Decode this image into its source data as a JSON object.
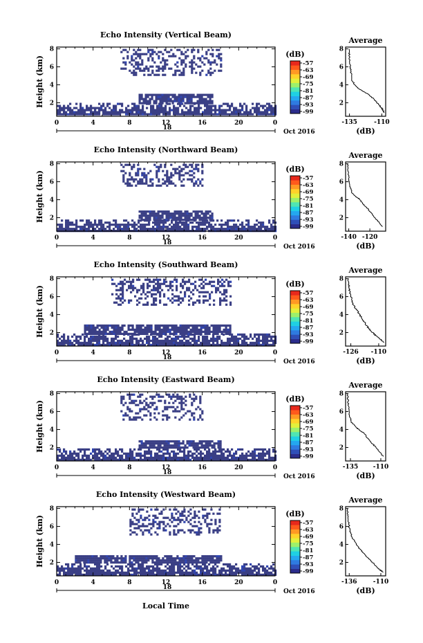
{
  "figure": {
    "date_label": "Oct 2016",
    "xlabel": "Local Time",
    "ylabel": "Height (km)",
    "day_label": "18"
  },
  "colorbar": {
    "unit": "(dB)",
    "ticks": [
      "-57",
      "-63",
      "-69",
      "-75",
      "-81",
      "-87",
      "-93",
      "-99"
    ],
    "colors": [
      "#2b2d8c",
      "#2f4fb8",
      "#2f7be0",
      "#24a8ef",
      "#1fd0e3",
      "#4fe5b3",
      "#9df06b",
      "#e2f03c",
      "#ffd22a",
      "#ff9924",
      "#ff5a1c",
      "#e8291c"
    ]
  },
  "chart_data": [
    {
      "type": "heatmap",
      "title": "Echo Intensity (Vertical Beam)",
      "xlabel": "Local Time",
      "ylabel": "Height (km)",
      "x_ticks": [
        "0",
        "4",
        "8",
        "12",
        "16",
        "20",
        "0"
      ],
      "xlim": [
        0,
        24
      ],
      "y_ticks": [
        "2",
        "4",
        "6",
        "8"
      ],
      "ylim": [
        0.5,
        8.2
      ],
      "regions": [
        {
          "level": "-99 to -93 dB",
          "x": [
            0,
            24
          ],
          "y": [
            0.7,
            2.0
          ]
        },
        {
          "level": "-99 to -93 dB",
          "x": [
            9,
            17
          ],
          "y": [
            2.0,
            3.0
          ]
        },
        {
          "level": "-99 to -93 dB",
          "x": [
            7,
            18
          ],
          "y": [
            5.0,
            8.0
          ]
        }
      ],
      "profile": {
        "title": "Average",
        "xlabel": "(dB)",
        "x_ticks": [
          "-135",
          "-110"
        ],
        "y_ticks": [
          "2",
          "4",
          "6",
          "8"
        ],
        "xlim": [
          -138,
          -107
        ],
        "ylim": [
          0.5,
          8.2
        ],
        "x": [
          -135.5,
          -135,
          -134.5,
          -134,
          -133,
          -130,
          -125,
          -120,
          -116,
          -113,
          -110,
          -108
        ],
        "y": [
          8.0,
          7.2,
          6.3,
          5.5,
          4.5,
          3.8,
          3.3,
          2.9,
          2.4,
          1.9,
          1.4,
          0.9
        ]
      }
    },
    {
      "type": "heatmap",
      "title": "Echo Intensity (Northward Beam)",
      "xlabel": "Local Time",
      "ylabel": "Height (km)",
      "x_ticks": [
        "0",
        "4",
        "8",
        "12",
        "16",
        "20",
        "0"
      ],
      "xlim": [
        0,
        24
      ],
      "y_ticks": [
        "2",
        "4",
        "6",
        "8"
      ],
      "ylim": [
        0.5,
        8.2
      ],
      "regions": [
        {
          "level": "-99 to -93 dB",
          "x": [
            0,
            24
          ],
          "y": [
            0.6,
            1.8
          ]
        },
        {
          "level": "-99 to -93 dB",
          "x": [
            9,
            17
          ],
          "y": [
            1.8,
            2.8
          ]
        },
        {
          "level": "-99 to -93 dB",
          "x": [
            7,
            16
          ],
          "y": [
            5.5,
            8.0
          ]
        }
      ],
      "profile": {
        "title": "Average",
        "xlabel": "(dB)",
        "x_ticks": [
          "-140",
          "-120"
        ],
        "y_ticks": [
          "2",
          "4",
          "6",
          "8"
        ],
        "xlim": [
          -143,
          -105
        ],
        "ylim": [
          0.5,
          8.2
        ],
        "x": [
          -141,
          -140.5,
          -140,
          -139,
          -137,
          -133,
          -130,
          -127,
          -122,
          -118,
          -113,
          -108
        ],
        "y": [
          8.0,
          7.2,
          6.4,
          5.6,
          4.8,
          4.3,
          4.1,
          3.6,
          3.0,
          2.4,
          1.7,
          1.0
        ]
      }
    },
    {
      "type": "heatmap",
      "title": "Echo Intensity (Southward Beam)",
      "xlabel": "Local Time",
      "ylabel": "Height (km)",
      "x_ticks": [
        "0",
        "4",
        "8",
        "12",
        "16",
        "20",
        "0"
      ],
      "xlim": [
        0,
        24
      ],
      "y_ticks": [
        "2",
        "4",
        "6",
        "8"
      ],
      "ylim": [
        0.5,
        8.2
      ],
      "regions": [
        {
          "level": "-99 to -93 dB",
          "x": [
            0,
            24
          ],
          "y": [
            0.6,
            1.9
          ]
        },
        {
          "level": "-99 to -93 dB",
          "x": [
            3,
            19
          ],
          "y": [
            1.9,
            2.9
          ]
        },
        {
          "level": "-99 to -93 dB",
          "x": [
            6,
            19
          ],
          "y": [
            5.0,
            8.0
          ]
        }
      ],
      "profile": {
        "title": "Average",
        "xlabel": "(dB)",
        "x_ticks": [
          "-126",
          "-110"
        ],
        "y_ticks": [
          "2",
          "4",
          "6",
          "8"
        ],
        "xlim": [
          -129,
          -106
        ],
        "ylim": [
          0.5,
          8.2
        ],
        "x": [
          -127.5,
          -127,
          -126.5,
          -125.5,
          -124,
          -122,
          -120,
          -118,
          -116,
          -113,
          -110,
          -107
        ],
        "y": [
          8.0,
          7.2,
          6.4,
          5.6,
          4.9,
          4.3,
          3.7,
          3.1,
          2.5,
          1.9,
          1.4,
          0.9
        ]
      }
    },
    {
      "type": "heatmap",
      "title": "Echo Intensity (Eastward Beam)",
      "xlabel": "Local Time",
      "ylabel": "Height (km)",
      "x_ticks": [
        "0",
        "4",
        "8",
        "12",
        "16",
        "20",
        "0"
      ],
      "xlim": [
        0,
        24
      ],
      "y_ticks": [
        "2",
        "4",
        "6",
        "8"
      ],
      "ylim": [
        0.5,
        8.2
      ],
      "regions": [
        {
          "level": "-99 to -93 dB",
          "x": [
            0,
            24
          ],
          "y": [
            0.6,
            1.9
          ]
        },
        {
          "level": "-99 to -93 dB",
          "x": [
            9,
            18
          ],
          "y": [
            1.9,
            2.8
          ]
        },
        {
          "level": "-99 to -93 dB",
          "x": [
            7,
            16
          ],
          "y": [
            5.0,
            8.0
          ]
        }
      ],
      "profile": {
        "title": "Average",
        "xlabel": "(dB)",
        "x_ticks": [
          "-135",
          "-110"
        ],
        "y_ticks": [
          "2",
          "4",
          "6",
          "8"
        ],
        "xlim": [
          -139,
          -106
        ],
        "ylim": [
          0.5,
          8.2
        ],
        "x": [
          -137.5,
          -137,
          -136.5,
          -135.5,
          -134,
          -130,
          -127,
          -124,
          -120,
          -116,
          -112,
          -108
        ],
        "y": [
          8.0,
          7.2,
          6.3,
          5.5,
          4.8,
          4.2,
          3.9,
          3.6,
          2.9,
          2.3,
          1.7,
          1.0
        ]
      }
    },
    {
      "type": "heatmap",
      "title": "Echo Intensity (Westward Beam)",
      "xlabel": "Local Time",
      "ylabel": "Height (km)",
      "x_ticks": [
        "0",
        "4",
        "8",
        "12",
        "16",
        "20",
        "0"
      ],
      "xlim": [
        0,
        24
      ],
      "y_ticks": [
        "2",
        "4",
        "6",
        "8"
      ],
      "ylim": [
        0.5,
        8.2
      ],
      "regions": [
        {
          "level": "-99 to -93 dB",
          "x": [
            0,
            24
          ],
          "y": [
            0.6,
            1.9
          ]
        },
        {
          "level": "-99 to -93 dB",
          "x": [
            2,
            18
          ],
          "y": [
            1.9,
            2.8
          ]
        },
        {
          "level": "-99 to -93 dB",
          "x": [
            8,
            18
          ],
          "y": [
            5.0,
            8.0
          ]
        }
      ],
      "profile": {
        "title": "Average",
        "xlabel": "(dB)",
        "x_ticks": [
          "-136",
          "-110"
        ],
        "y_ticks": [
          "2",
          "4",
          "6",
          "8"
        ],
        "xlim": [
          -139,
          -106
        ],
        "ylim": [
          0.5,
          8.2
        ],
        "x": [
          -137.5,
          -137,
          -136.5,
          -135.5,
          -134,
          -131,
          -128,
          -124,
          -120,
          -116,
          -112,
          -108
        ],
        "y": [
          8.0,
          7.2,
          6.4,
          5.6,
          4.9,
          4.2,
          3.6,
          3.0,
          2.4,
          1.9,
          1.3,
          0.9
        ]
      }
    }
  ]
}
